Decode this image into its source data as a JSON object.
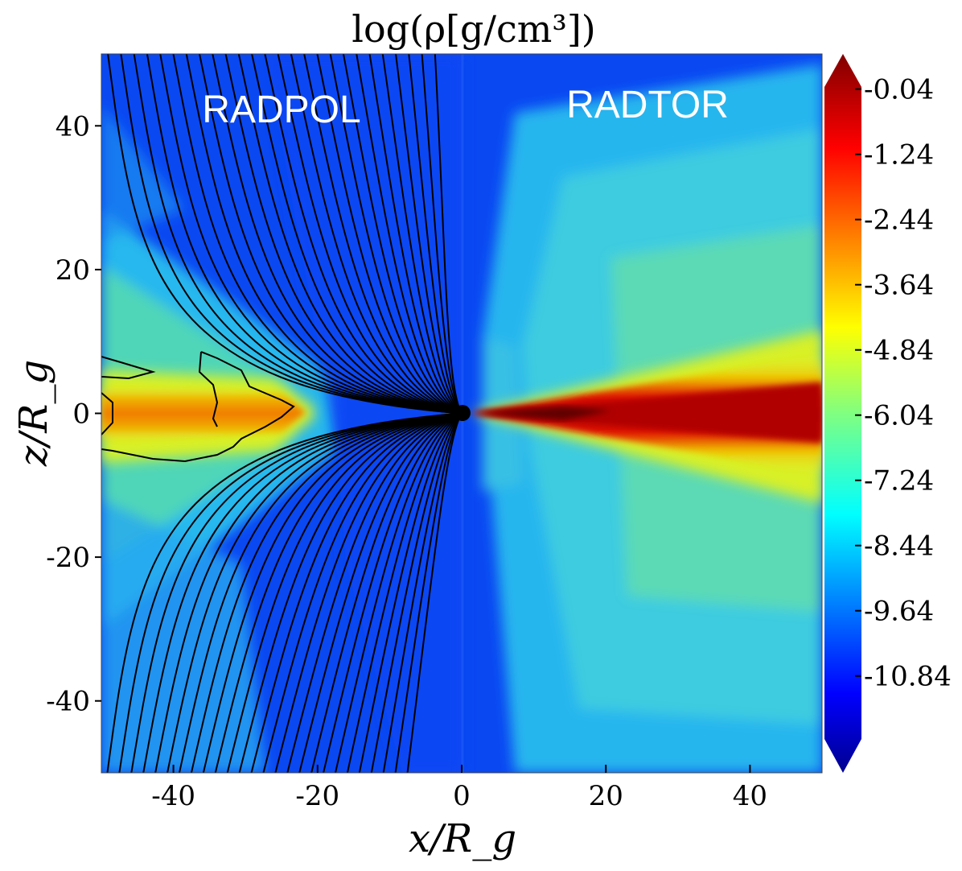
{
  "chart_data": {
    "type": "heatmap",
    "title": "log(ρ[g/cm³])",
    "xlabel": "x/R_g",
    "ylabel": "z/R_g",
    "xlim": [
      -50,
      50
    ],
    "ylim": [
      -50,
      50
    ],
    "x_ticks": [
      -40,
      -20,
      0,
      20,
      40
    ],
    "y_ticks": [
      -40,
      -20,
      0,
      20,
      40
    ],
    "x_tick_labels": [
      "-40",
      "-20",
      "0",
      "20",
      "40"
    ],
    "y_tick_labels": [
      "-40",
      "-20",
      "0",
      "20",
      "40"
    ],
    "panels": [
      {
        "name": "RADPOL",
        "x_range": [
          -50,
          0
        ]
      },
      {
        "name": "RADTOR",
        "x_range": [
          0,
          50
        ]
      }
    ],
    "colorbar": {
      "colormap": "jet",
      "extend": "both",
      "range": [
        -12.0,
        0.0
      ],
      "ticks": [
        -0.04,
        -1.24,
        -2.44,
        -3.64,
        -4.84,
        -6.04,
        -7.24,
        -8.44,
        -9.64,
        -10.84
      ],
      "tick_labels": [
        "-0.04",
        "-1.24",
        "-2.44",
        "-3.64",
        "-4.84",
        "-6.04",
        "-7.24",
        "-8.44",
        "-9.64",
        "-10.84"
      ]
    },
    "field_lines": {
      "color": "#000000",
      "converge_at": [
        0,
        0
      ],
      "description_hidden": true
    },
    "black_hole": {
      "x": 0,
      "z": 0,
      "radius": 1.2
    }
  },
  "colors": {
    "background_blue": "#0a40f0",
    "funnel_blue": "#0a48f5",
    "wind_cyan": "#23c0f0",
    "wind_green": "#5fe0a0",
    "disk_red": "#c00000",
    "disk_core": "#700000",
    "disk_orange": "#f07000",
    "disk_yellow": "#e6f020",
    "outline": "#000000"
  }
}
